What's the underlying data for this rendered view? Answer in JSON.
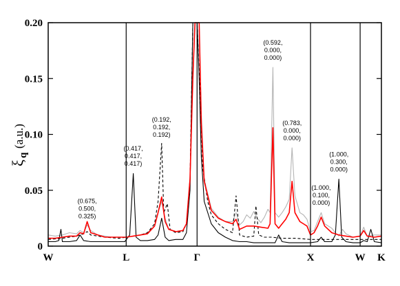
{
  "chart_data": {
    "type": "line",
    "title": "",
    "ylabel": {
      "symbol": "ξ",
      "subscript": "q",
      "unit": "(a.u.)"
    },
    "ylim": [
      0,
      0.2
    ],
    "yticks": [
      "0",
      "0.05",
      "0.10",
      "0.15",
      "0.20"
    ],
    "ytick_values": [
      0,
      0.05,
      0.1,
      0.15,
      0.2
    ],
    "xlim": [
      0,
      4.7
    ],
    "x_points": [
      {
        "label": "W",
        "x": 0
      },
      {
        "label": "L",
        "x": 1.1
      },
      {
        "label": "Γ",
        "x": 2.1
      },
      {
        "label": "X",
        "x": 3.7
      },
      {
        "label": "W",
        "x": 4.4
      },
      {
        "label": "K",
        "x": 4.7
      }
    ],
    "series": [
      {
        "color": "#b4b4b4",
        "dash": "",
        "points": [
          [
            0,
            0.01
          ],
          [
            0.1,
            0.009
          ],
          [
            0.2,
            0.01
          ],
          [
            0.3,
            0.012
          ],
          [
            0.4,
            0.011
          ],
          [
            0.45,
            0.014
          ],
          [
            0.5,
            0.012
          ],
          [
            0.55,
            0.019
          ],
          [
            0.6,
            0.014
          ],
          [
            0.7,
            0.01
          ],
          [
            0.8,
            0.009
          ],
          [
            0.9,
            0.008
          ],
          [
            1.0,
            0.008
          ],
          [
            1.1,
            0.008
          ],
          [
            1.2,
            0.009
          ],
          [
            1.3,
            0.01
          ],
          [
            1.4,
            0.012
          ],
          [
            1.5,
            0.018
          ],
          [
            1.55,
            0.03
          ],
          [
            1.6,
            0.04
          ],
          [
            1.65,
            0.025
          ],
          [
            1.7,
            0.015
          ],
          [
            1.8,
            0.013
          ],
          [
            1.9,
            0.014
          ],
          [
            1.95,
            0.02
          ],
          [
            2.0,
            0.06
          ],
          [
            2.04,
            0.15
          ],
          [
            2.07,
            0.2
          ],
          [
            2.13,
            0.2
          ],
          [
            2.16,
            0.12
          ],
          [
            2.2,
            0.06
          ],
          [
            2.3,
            0.034
          ],
          [
            2.4,
            0.026
          ],
          [
            2.5,
            0.022
          ],
          [
            2.6,
            0.022
          ],
          [
            2.65,
            0.03
          ],
          [
            2.7,
            0.019
          ],
          [
            2.75,
            0.022
          ],
          [
            2.8,
            0.028
          ],
          [
            2.85,
            0.025
          ],
          [
            2.9,
            0.031
          ],
          [
            2.95,
            0.025
          ],
          [
            3.0,
            0.021
          ],
          [
            3.05,
            0.026
          ],
          [
            3.1,
            0.033
          ],
          [
            3.13,
            0.03
          ],
          [
            3.17,
            0.16
          ],
          [
            3.2,
            0.03
          ],
          [
            3.25,
            0.026
          ],
          [
            3.3,
            0.03
          ],
          [
            3.35,
            0.035
          ],
          [
            3.4,
            0.042
          ],
          [
            3.44,
            0.088
          ],
          [
            3.48,
            0.045
          ],
          [
            3.55,
            0.03
          ],
          [
            3.6,
            0.028
          ],
          [
            3.65,
            0.024
          ],
          [
            3.7,
            0.013
          ],
          [
            3.75,
            0.014
          ],
          [
            3.8,
            0.022
          ],
          [
            3.85,
            0.03
          ],
          [
            3.9,
            0.02
          ],
          [
            4.0,
            0.016
          ],
          [
            4.05,
            0.012
          ],
          [
            4.1,
            0.009
          ],
          [
            4.15,
            0.015
          ],
          [
            4.2,
            0.011
          ],
          [
            4.3,
            0.008
          ],
          [
            4.4,
            0.009
          ],
          [
            4.45,
            0.017
          ],
          [
            4.5,
            0.009
          ],
          [
            4.6,
            0.01
          ],
          [
            4.7,
            0.01
          ]
        ]
      },
      {
        "color": "#000000",
        "dash": "",
        "points": [
          [
            0,
            0.004
          ],
          [
            0.1,
            0.004
          ],
          [
            0.15,
            0.005
          ],
          [
            0.18,
            0.015
          ],
          [
            0.2,
            0.004
          ],
          [
            0.3,
            0.004
          ],
          [
            0.4,
            0.005
          ],
          [
            0.45,
            0.01
          ],
          [
            0.5,
            0.005
          ],
          [
            0.6,
            0.004
          ],
          [
            0.7,
            0.004
          ],
          [
            0.8,
            0.004
          ],
          [
            0.9,
            0.004
          ],
          [
            1.0,
            0.004
          ],
          [
            1.08,
            0.004
          ],
          [
            1.15,
            0.01
          ],
          [
            1.2,
            0.065
          ],
          [
            1.24,
            0.008
          ],
          [
            1.3,
            0.005
          ],
          [
            1.4,
            0.005
          ],
          [
            1.5,
            0.006
          ],
          [
            1.55,
            0.01
          ],
          [
            1.6,
            0.025
          ],
          [
            1.65,
            0.008
          ],
          [
            1.7,
            0.005
          ],
          [
            1.8,
            0.006
          ],
          [
            1.9,
            0.006
          ],
          [
            1.95,
            0.012
          ],
          [
            2.0,
            0.05
          ],
          [
            2.04,
            0.2
          ],
          [
            2.07,
            0.2
          ],
          [
            2.1,
            0.2
          ],
          [
            2.13,
            0.15
          ],
          [
            2.16,
            0.08
          ],
          [
            2.2,
            0.04
          ],
          [
            2.3,
            0.02
          ],
          [
            2.4,
            0.012
          ],
          [
            2.5,
            0.008
          ],
          [
            2.6,
            0.005
          ],
          [
            2.7,
            0.004
          ],
          [
            2.8,
            0.004
          ],
          [
            2.9,
            0.003
          ],
          [
            3.0,
            0.003
          ],
          [
            3.1,
            0.003
          ],
          [
            3.2,
            0.003
          ],
          [
            3.25,
            0.01
          ],
          [
            3.3,
            0.004
          ],
          [
            3.4,
            0.003
          ],
          [
            3.5,
            0.003
          ],
          [
            3.6,
            0.003
          ],
          [
            3.7,
            0.003
          ],
          [
            3.8,
            0.004
          ],
          [
            3.85,
            0.008
          ],
          [
            3.9,
            0.004
          ],
          [
            4.0,
            0.004
          ],
          [
            4.05,
            0.01
          ],
          [
            4.1,
            0.06
          ],
          [
            4.14,
            0.008
          ],
          [
            4.2,
            0.004
          ],
          [
            4.3,
            0.003
          ],
          [
            4.4,
            0.003
          ],
          [
            4.45,
            0.005
          ],
          [
            4.5,
            0.004
          ],
          [
            4.55,
            0.015
          ],
          [
            4.6,
            0.004
          ],
          [
            4.7,
            0.003
          ]
        ]
      },
      {
        "color": "#000000",
        "dash": "4,3",
        "points": [
          [
            0,
            0.006
          ],
          [
            0.2,
            0.007
          ],
          [
            0.3,
            0.008
          ],
          [
            0.4,
            0.009
          ],
          [
            0.5,
            0.011
          ],
          [
            0.55,
            0.013
          ],
          [
            0.6,
            0.01
          ],
          [
            0.8,
            0.008
          ],
          [
            1.0,
            0.007
          ],
          [
            1.1,
            0.008
          ],
          [
            1.2,
            0.009
          ],
          [
            1.3,
            0.01
          ],
          [
            1.4,
            0.012
          ],
          [
            1.5,
            0.02
          ],
          [
            1.55,
            0.04
          ],
          [
            1.6,
            0.092
          ],
          [
            1.63,
            0.03
          ],
          [
            1.68,
            0.038
          ],
          [
            1.72,
            0.015
          ],
          [
            1.8,
            0.012
          ],
          [
            1.9,
            0.013
          ],
          [
            1.95,
            0.02
          ],
          [
            2.0,
            0.06
          ],
          [
            2.04,
            0.2
          ],
          [
            2.1,
            0.2
          ],
          [
            2.14,
            0.14
          ],
          [
            2.18,
            0.07
          ],
          [
            2.25,
            0.04
          ],
          [
            2.3,
            0.028
          ],
          [
            2.4,
            0.02
          ],
          [
            2.5,
            0.015
          ],
          [
            2.6,
            0.012
          ],
          [
            2.65,
            0.045
          ],
          [
            2.7,
            0.01
          ],
          [
            2.8,
            0.008
          ],
          [
            2.9,
            0.009
          ],
          [
            2.93,
            0.036
          ],
          [
            2.97,
            0.01
          ],
          [
            3.05,
            0.008
          ],
          [
            3.15,
            0.008
          ],
          [
            3.3,
            0.007
          ],
          [
            3.5,
            0.007
          ],
          [
            3.7,
            0.006
          ],
          [
            4.0,
            0.006
          ],
          [
            4.4,
            0.006
          ],
          [
            4.7,
            0.006
          ]
        ]
      },
      {
        "color": "#ff0000",
        "dash": "",
        "points": [
          [
            0,
            0.007
          ],
          [
            0.1,
            0.007
          ],
          [
            0.2,
            0.008
          ],
          [
            0.3,
            0.009
          ],
          [
            0.4,
            0.009
          ],
          [
            0.45,
            0.012
          ],
          [
            0.5,
            0.011
          ],
          [
            0.55,
            0.022
          ],
          [
            0.6,
            0.012
          ],
          [
            0.7,
            0.01
          ],
          [
            0.8,
            0.008
          ],
          [
            0.9,
            0.008
          ],
          [
            1.0,
            0.008
          ],
          [
            1.1,
            0.008
          ],
          [
            1.2,
            0.009
          ],
          [
            1.3,
            0.01
          ],
          [
            1.4,
            0.011
          ],
          [
            1.5,
            0.018
          ],
          [
            1.55,
            0.03
          ],
          [
            1.6,
            0.044
          ],
          [
            1.65,
            0.022
          ],
          [
            1.7,
            0.015
          ],
          [
            1.8,
            0.013
          ],
          [
            1.9,
            0.014
          ],
          [
            1.95,
            0.02
          ],
          [
            2.0,
            0.06
          ],
          [
            2.04,
            0.15
          ],
          [
            2.07,
            0.2
          ],
          [
            2.13,
            0.2
          ],
          [
            2.16,
            0.11
          ],
          [
            2.2,
            0.058
          ],
          [
            2.3,
            0.032
          ],
          [
            2.4,
            0.025
          ],
          [
            2.5,
            0.022
          ],
          [
            2.6,
            0.02
          ],
          [
            2.65,
            0.024
          ],
          [
            2.7,
            0.015
          ],
          [
            2.8,
            0.018
          ],
          [
            2.9,
            0.018
          ],
          [
            3.0,
            0.017
          ],
          [
            3.1,
            0.016
          ],
          [
            3.13,
            0.02
          ],
          [
            3.17,
            0.106
          ],
          [
            3.2,
            0.02
          ],
          [
            3.25,
            0.016
          ],
          [
            3.3,
            0.02
          ],
          [
            3.35,
            0.024
          ],
          [
            3.4,
            0.03
          ],
          [
            3.44,
            0.058
          ],
          [
            3.48,
            0.03
          ],
          [
            3.55,
            0.022
          ],
          [
            3.6,
            0.02
          ],
          [
            3.65,
            0.018
          ],
          [
            3.7,
            0.01
          ],
          [
            3.75,
            0.012
          ],
          [
            3.8,
            0.018
          ],
          [
            3.85,
            0.026
          ],
          [
            3.9,
            0.018
          ],
          [
            4.0,
            0.012
          ],
          [
            4.1,
            0.01
          ],
          [
            4.2,
            0.009
          ],
          [
            4.3,
            0.008
          ],
          [
            4.4,
            0.009
          ],
          [
            4.45,
            0.014
          ],
          [
            4.5,
            0.009
          ],
          [
            4.6,
            0.008
          ],
          [
            4.7,
            0.009
          ]
        ]
      }
    ],
    "annotations": [
      {
        "lines": [
          "(0.675,",
          "0.500,",
          "0.325)"
        ],
        "x": 0.55,
        "y": 0.02
      },
      {
        "lines": [
          "(0.417,",
          "0.417,",
          "0.417)"
        ],
        "x": 1.2,
        "y": 0.067
      },
      {
        "lines": [
          "(0.192,",
          "0.192,",
          "0.192)"
        ],
        "x": 1.6,
        "y": 0.093
      },
      {
        "lines": [
          "(0.592,",
          "0.000,",
          "0.000)"
        ],
        "x": 3.17,
        "y": 0.162
      },
      {
        "lines": [
          "(0.783,",
          "0.000,",
          "0.000)"
        ],
        "x": 3.44,
        "y": 0.09
      },
      {
        "lines": [
          "(1.000,",
          "0.100,",
          "0.000)"
        ],
        "x": 3.85,
        "y": 0.032
      },
      {
        "lines": [
          "(1.000,",
          "0.300,",
          "0.000)"
        ],
        "x": 4.1,
        "y": 0.062
      }
    ],
    "grid": false,
    "legend": "none"
  }
}
